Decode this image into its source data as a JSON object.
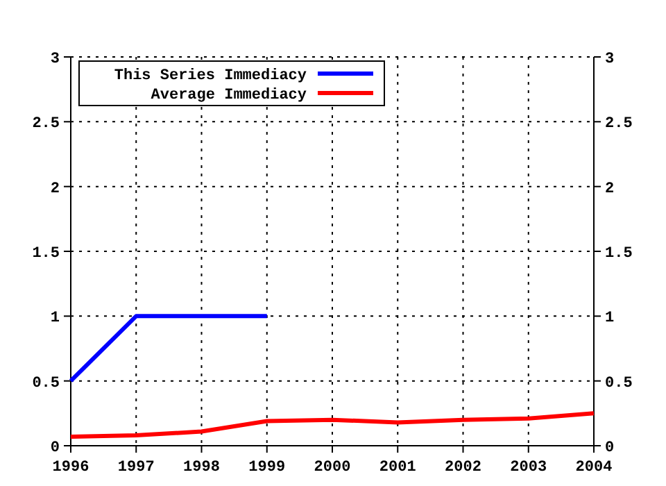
{
  "chart_data": {
    "type": "line",
    "x": [
      1996,
      1997,
      1998,
      1999,
      2000,
      2001,
      2002,
      2003,
      2004
    ],
    "series": [
      {
        "name": "This Series Immediacy",
        "color": "#0000ff",
        "values": [
          0.5,
          1,
          1,
          1,
          null,
          null,
          null,
          null,
          null
        ]
      },
      {
        "name": "Average Immediacy",
        "color": "#ff0000",
        "values": [
          0.07,
          0.08,
          0.11,
          0.19,
          0.2,
          0.18,
          0.2,
          0.21,
          0.25
        ]
      }
    ],
    "xlim": [
      1996,
      2004
    ],
    "xticks": [
      1996,
      1997,
      1998,
      1999,
      2000,
      2001,
      2002,
      2003,
      2004
    ],
    "ylim": [
      0,
      3
    ],
    "yticks": [
      0,
      0.5,
      1,
      1.5,
      2,
      2.5,
      3
    ],
    "y2lim": [
      0,
      3
    ],
    "y2ticks": [
      0,
      0.5,
      1,
      1.5,
      2,
      2.5,
      3
    ],
    "grid": true,
    "legend": "top left",
    "line_style": "solid"
  }
}
